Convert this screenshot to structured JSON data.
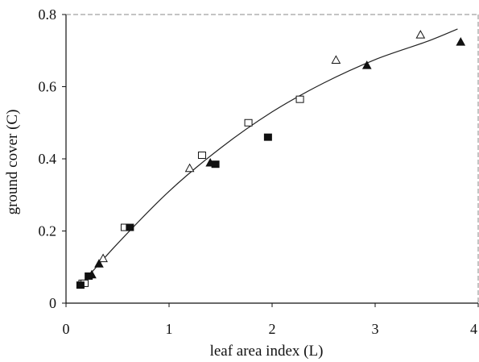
{
  "chart_data": {
    "type": "scatter",
    "title": "",
    "xlabel": "leaf area index (L)",
    "ylabel": "ground cover (C)",
    "xlim": [
      0,
      4
    ],
    "ylim": [
      0,
      0.8
    ],
    "x_ticks": [
      "0",
      "1",
      "2",
      "3",
      "4"
    ],
    "y_ticks": [
      "0",
      "0.2",
      "0.4",
      "0.6",
      "0.8"
    ],
    "grid": false,
    "legend": "none",
    "series": [
      {
        "marker": "open-square",
        "x": [
          0.16,
          0.18,
          0.57,
          1.32,
          1.77,
          2.27
        ],
        "y": [
          0.055,
          0.055,
          0.21,
          0.41,
          0.5,
          0.565
        ]
      },
      {
        "marker": "filled-square",
        "x": [
          0.14,
          0.22,
          0.62,
          1.45,
          1.96
        ],
        "y": [
          0.05,
          0.075,
          0.21,
          0.385,
          0.46
        ]
      },
      {
        "marker": "open-triangle",
        "x": [
          0.36,
          1.2,
          2.62,
          3.44
        ],
        "y": [
          0.125,
          0.375,
          0.675,
          0.745
        ]
      },
      {
        "marker": "filled-triangle",
        "x": [
          0.25,
          0.32,
          1.4,
          2.92,
          3.83
        ],
        "y": [
          0.08,
          0.11,
          0.39,
          0.66,
          0.725
        ]
      },
      {
        "marker": "fitted-curve",
        "x": [
          0.14,
          0.5,
          1.0,
          1.5,
          2.0,
          2.5,
          3.0,
          3.5,
          3.8
        ],
        "y": [
          0.05,
          0.165,
          0.31,
          0.43,
          0.53,
          0.61,
          0.675,
          0.725,
          0.76
        ]
      }
    ]
  },
  "colors": {
    "axis": "#111111",
    "frame": "#888888",
    "marker": "#111111",
    "curve": "#222222"
  }
}
